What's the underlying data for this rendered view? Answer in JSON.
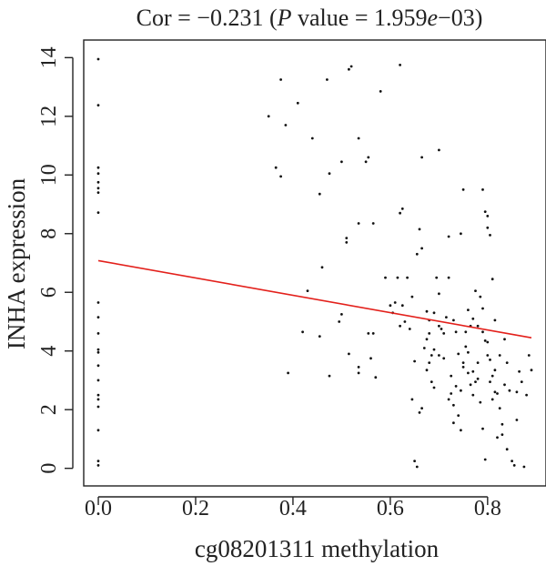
{
  "chart_data": {
    "type": "scatter",
    "title": {
      "prefix": "Cor = −0.231 (",
      "p_italic": "P",
      "middle": " value = 1.959",
      "e_italic": "e",
      "suffix": "−03)"
    },
    "xlabel": "cg08201311 methylation",
    "ylabel": "INHA expression",
    "xlim": [
      -0.03,
      0.92
    ],
    "ylim": [
      -0.6,
      14.6
    ],
    "xticks": [
      "0.0",
      "0.2",
      "0.4",
      "0.6",
      "0.8"
    ],
    "yticks": [
      "0",
      "2",
      "4",
      "6",
      "8",
      "10",
      "12",
      "14"
    ],
    "colors": {
      "points": "#111111",
      "regression_line": "#e3201b",
      "axes": "#222222"
    },
    "regression_line": {
      "x": [
        0.0,
        0.89
      ],
      "y": [
        7.08,
        4.45
      ]
    },
    "points": [
      [
        0.0,
        13.95
      ],
      [
        0.0,
        12.38
      ],
      [
        0.0,
        10.25
      ],
      [
        0.0,
        10.05
      ],
      [
        0.0,
        9.75
      ],
      [
        0.0,
        9.55
      ],
      [
        0.0,
        9.4
      ],
      [
        0.0,
        8.72
      ],
      [
        0.0,
        5.65
      ],
      [
        0.0,
        5.15
      ],
      [
        0.0,
        4.6
      ],
      [
        0.0,
        4.05
      ],
      [
        0.0,
        3.95
      ],
      [
        0.0,
        3.5
      ],
      [
        0.0,
        3.0
      ],
      [
        0.0,
        2.5
      ],
      [
        0.0,
        2.35
      ],
      [
        0.0,
        2.1
      ],
      [
        0.0,
        1.3
      ],
      [
        0.0,
        0.25
      ],
      [
        0.0,
        0.1
      ],
      [
        0.35,
        12.0
      ],
      [
        0.375,
        13.25
      ],
      [
        0.41,
        12.45
      ],
      [
        0.385,
        11.7
      ],
      [
        0.365,
        10.25
      ],
      [
        0.375,
        9.95
      ],
      [
        0.44,
        11.25
      ],
      [
        0.47,
        13.25
      ],
      [
        0.515,
        13.6
      ],
      [
        0.52,
        13.7
      ],
      [
        0.62,
        13.75
      ],
      [
        0.58,
        12.85
      ],
      [
        0.535,
        11.25
      ],
      [
        0.555,
        10.6
      ],
      [
        0.55,
        10.45
      ],
      [
        0.5,
        10.45
      ],
      [
        0.475,
        10.05
      ],
      [
        0.455,
        9.35
      ],
      [
        0.535,
        8.35
      ],
      [
        0.565,
        8.35
      ],
      [
        0.51,
        7.85
      ],
      [
        0.51,
        7.7
      ],
      [
        0.46,
        6.85
      ],
      [
        0.43,
        6.05
      ],
      [
        0.39,
        3.25
      ],
      [
        0.42,
        4.65
      ],
      [
        0.455,
        4.5
      ],
      [
        0.475,
        3.15
      ],
      [
        0.495,
        5.0
      ],
      [
        0.5,
        5.25
      ],
      [
        0.515,
        3.9
      ],
      [
        0.535,
        3.45
      ],
      [
        0.535,
        3.25
      ],
      [
        0.555,
        4.6
      ],
      [
        0.56,
        3.75
      ],
      [
        0.565,
        4.6
      ],
      [
        0.57,
        3.1
      ],
      [
        0.59,
        6.5
      ],
      [
        0.6,
        5.55
      ],
      [
        0.605,
        5.3
      ],
      [
        0.61,
        5.65
      ],
      [
        0.615,
        6.5
      ],
      [
        0.62,
        8.7
      ],
      [
        0.625,
        8.85
      ],
      [
        0.63,
        5.0
      ],
      [
        0.625,
        5.55
      ],
      [
        0.62,
        4.85
      ],
      [
        0.635,
        6.5
      ],
      [
        0.64,
        4.75
      ],
      [
        0.645,
        2.35
      ],
      [
        0.65,
        0.25
      ],
      [
        0.655,
        0.05
      ],
      [
        0.65,
        3.65
      ],
      [
        0.66,
        8.15
      ],
      [
        0.655,
        7.3
      ],
      [
        0.665,
        7.5
      ],
      [
        0.665,
        10.6
      ],
      [
        0.675,
        5.35
      ],
      [
        0.68,
        5.05
      ],
      [
        0.675,
        3.35
      ],
      [
        0.68,
        3.6
      ],
      [
        0.685,
        2.95
      ],
      [
        0.69,
        2.75
      ],
      [
        0.695,
        6.5
      ],
      [
        0.7,
        10.85
      ],
      [
        0.7,
        5.95
      ],
      [
        0.705,
        4.75
      ],
      [
        0.71,
        4.6
      ],
      [
        0.715,
        5.15
      ],
      [
        0.72,
        6.5
      ],
      [
        0.72,
        7.9
      ],
      [
        0.725,
        3.15
      ],
      [
        0.73,
        1.55
      ],
      [
        0.735,
        2.8
      ],
      [
        0.74,
        1.8
      ],
      [
        0.745,
        2.65
      ],
      [
        0.745,
        1.3
      ],
      [
        0.75,
        3.6
      ],
      [
        0.755,
        4.65
      ],
      [
        0.76,
        3.95
      ],
      [
        0.765,
        4.85
      ],
      [
        0.77,
        5.1
      ],
      [
        0.77,
        3.3
      ],
      [
        0.775,
        2.95
      ],
      [
        0.78,
        3.6
      ],
      [
        0.78,
        3.05
      ],
      [
        0.785,
        2.25
      ],
      [
        0.79,
        1.35
      ],
      [
        0.79,
        9.5
      ],
      [
        0.795,
        8.75
      ],
      [
        0.8,
        8.6
      ],
      [
        0.805,
        7.95
      ],
      [
        0.8,
        8.2
      ],
      [
        0.81,
        6.45
      ],
      [
        0.815,
        5.05
      ],
      [
        0.815,
        3.35
      ],
      [
        0.82,
        2.55
      ],
      [
        0.825,
        2.05
      ],
      [
        0.83,
        1.5
      ],
      [
        0.835,
        2.85
      ],
      [
        0.84,
        3.6
      ],
      [
        0.845,
        2.65
      ],
      [
        0.85,
        0.25
      ],
      [
        0.86,
        2.6
      ],
      [
        0.865,
        3.3
      ],
      [
        0.87,
        2.95
      ],
      [
        0.875,
        0.05
      ],
      [
        0.88,
        2.5
      ],
      [
        0.885,
        3.85
      ],
      [
        0.89,
        3.35
      ],
      [
        0.855,
        0.1
      ],
      [
        0.84,
        0.65
      ],
      [
        0.75,
        9.5
      ],
      [
        0.745,
        8.0
      ],
      [
        0.73,
        5.05
      ],
      [
        0.735,
        4.65
      ],
      [
        0.74,
        3.9
      ],
      [
        0.71,
        3.75
      ],
      [
        0.7,
        3.85
      ],
      [
        0.69,
        4.05
      ],
      [
        0.685,
        3.85
      ],
      [
        0.67,
        4.1
      ],
      [
        0.665,
        2.05
      ],
      [
        0.66,
        1.9
      ],
      [
        0.72,
        2.35
      ],
      [
        0.73,
        2.15
      ],
      [
        0.725,
        2.55
      ],
      [
        0.8,
        4.3
      ],
      [
        0.805,
        3.7
      ],
      [
        0.81,
        3.15
      ],
      [
        0.815,
        2.6
      ],
      [
        0.82,
        1.05
      ],
      [
        0.79,
        5.45
      ],
      [
        0.785,
        5.85
      ],
      [
        0.775,
        6.05
      ],
      [
        0.76,
        5.4
      ],
      [
        0.755,
        4.15
      ],
      [
        0.75,
        3.45
      ],
      [
        0.7,
        4.85
      ],
      [
        0.69,
        5.3
      ],
      [
        0.68,
        4.6
      ],
      [
        0.675,
        4.4
      ],
      [
        0.78,
        4.85
      ],
      [
        0.79,
        4.65
      ],
      [
        0.795,
        4.35
      ],
      [
        0.8,
        3.85
      ],
      [
        0.805,
        2.95
      ],
      [
        0.81,
        2.35
      ],
      [
        0.76,
        3.25
      ],
      [
        0.765,
        2.85
      ],
      [
        0.77,
        2.5
      ],
      [
        0.795,
        0.3
      ],
      [
        0.83,
        1.15
      ],
      [
        0.835,
        4.4
      ],
      [
        0.825,
        3.85
      ],
      [
        0.86,
        1.65
      ],
      [
        0.645,
        5.85
      ]
    ]
  }
}
